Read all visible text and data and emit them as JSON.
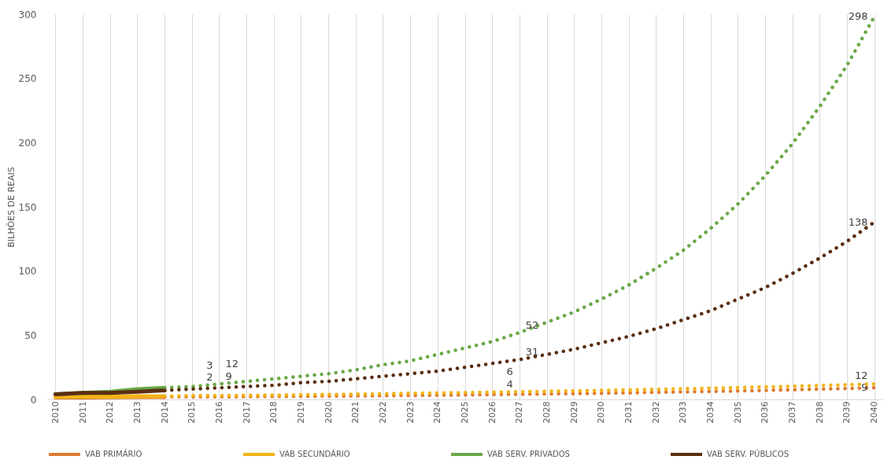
{
  "chart_data": {
    "type": "line",
    "ylabel": "BILHÕES DE REAIS",
    "categories": [
      "2010",
      "2011",
      "2012",
      "2013",
      "2014",
      "2015",
      "2016",
      "2017",
      "2018",
      "2019",
      "2020",
      "2021",
      "2022",
      "2023",
      "2024",
      "2025",
      "2026",
      "2027",
      "2028",
      "2029",
      "2030",
      "2031",
      "2032",
      "2033",
      "2034",
      "2035",
      "2036",
      "2037",
      "2038",
      "2039",
      "2040"
    ],
    "ylim": [
      0,
      300
    ],
    "yticks": [
      0,
      50,
      100,
      150,
      200,
      250,
      300
    ],
    "grid": "x",
    "legend": "bottom",
    "series": [
      {
        "name": "VAB PRIMÁRIO",
        "color": "#dd7a2e",
        "line_style": "solid",
        "values": [
          1.5,
          1.6,
          1.7,
          1.8,
          1.9,
          null,
          null,
          null,
          null,
          null,
          null,
          null,
          null,
          null,
          null,
          null,
          null,
          null,
          null,
          null,
          null,
          null,
          null,
          null,
          null,
          null,
          null,
          null,
          null,
          null,
          null
        ]
      },
      {
        "name": "VAB SECUNDÁRIO",
        "color": "#f2b418",
        "line_style": "solid",
        "values": [
          2,
          2.1,
          2.2,
          2.4,
          2.5,
          null,
          null,
          null,
          null,
          null,
          null,
          null,
          null,
          null,
          null,
          null,
          null,
          null,
          null,
          null,
          null,
          null,
          null,
          null,
          null,
          null,
          null,
          null,
          null,
          null,
          null
        ]
      },
      {
        "name": "VAB SERV. PRIVADOS",
        "color": "#6aa847",
        "line_style": "solid",
        "values": [
          4,
          5,
          6,
          8,
          9,
          null,
          null,
          null,
          null,
          null,
          null,
          null,
          null,
          null,
          null,
          null,
          null,
          null,
          null,
          null,
          null,
          null,
          null,
          null,
          null,
          null,
          null,
          null,
          null,
          null,
          null
        ]
      },
      {
        "name": "VAB SERV. PÚBLICOS",
        "color": "#5a2e12",
        "line_style": "solid",
        "values": [
          4,
          5,
          5,
          6,
          7,
          null,
          null,
          null,
          null,
          null,
          null,
          null,
          null,
          null,
          null,
          null,
          null,
          null,
          null,
          null,
          null,
          null,
          null,
          null,
          null,
          null,
          null,
          null,
          null,
          null,
          null
        ]
      },
      {
        "color": "#dd7a2e",
        "line_style": "dotted",
        "values": [
          null,
          null,
          null,
          null,
          1.9,
          2,
          2,
          2.1,
          2.3,
          2.4,
          2.6,
          2.7,
          2.9,
          3.1,
          3.3,
          3.5,
          3.8,
          4,
          4.3,
          4.5,
          4.8,
          5.1,
          5.5,
          5.8,
          6.2,
          6.6,
          7,
          7.5,
          8,
          8.5,
          9
        ],
        "value_labels": [
          null,
          null,
          null,
          null,
          null,
          null,
          "2",
          null,
          null,
          null,
          null,
          null,
          null,
          null,
          null,
          null,
          null,
          "4",
          null,
          null,
          null,
          null,
          null,
          null,
          null,
          null,
          null,
          null,
          null,
          null,
          "9"
        ]
      },
      {
        "color": "#f2b418",
        "line_style": "dotted",
        "values": [
          null,
          null,
          null,
          null,
          2.5,
          3,
          3,
          3.2,
          3.4,
          3.6,
          3.8,
          4.1,
          4.4,
          4.7,
          5,
          5.3,
          5.6,
          6,
          6.3,
          6.7,
          7,
          7.4,
          7.8,
          8.3,
          8.7,
          9.2,
          9.7,
          10.2,
          10.8,
          11.4,
          12
        ],
        "value_labels": [
          null,
          null,
          null,
          null,
          null,
          null,
          "3",
          null,
          null,
          null,
          null,
          null,
          null,
          null,
          null,
          null,
          null,
          "6",
          null,
          null,
          null,
          null,
          null,
          null,
          null,
          null,
          null,
          null,
          null,
          null,
          "12"
        ]
      },
      {
        "color": "#6aa847",
        "line_style": "dotted",
        "values": [
          null,
          null,
          null,
          null,
          9,
          10,
          12,
          14,
          16,
          18,
          20,
          23,
          27,
          30,
          35,
          40,
          45,
          52,
          60,
          68,
          78,
          89,
          102,
          116,
          133,
          152,
          174,
          199,
          228,
          260,
          298
        ],
        "value_labels": [
          null,
          null,
          null,
          null,
          null,
          null,
          "12",
          null,
          null,
          null,
          null,
          null,
          null,
          null,
          null,
          null,
          null,
          "52",
          null,
          null,
          null,
          null,
          null,
          null,
          null,
          null,
          null,
          null,
          null,
          null,
          "298"
        ]
      },
      {
        "color": "#5a2e12",
        "line_style": "dotted",
        "values": [
          null,
          null,
          null,
          null,
          7,
          8,
          9,
          10,
          11,
          13,
          14,
          16,
          18,
          20,
          22,
          25,
          28,
          31,
          35,
          39,
          44,
          49,
          55,
          62,
          69,
          78,
          87,
          98,
          110,
          123,
          138
        ],
        "value_labels": [
          null,
          null,
          null,
          null,
          null,
          null,
          "9",
          null,
          null,
          null,
          null,
          null,
          null,
          null,
          null,
          null,
          null,
          "31",
          null,
          null,
          null,
          null,
          null,
          null,
          null,
          null,
          null,
          null,
          null,
          null,
          "138"
        ]
      }
    ]
  }
}
